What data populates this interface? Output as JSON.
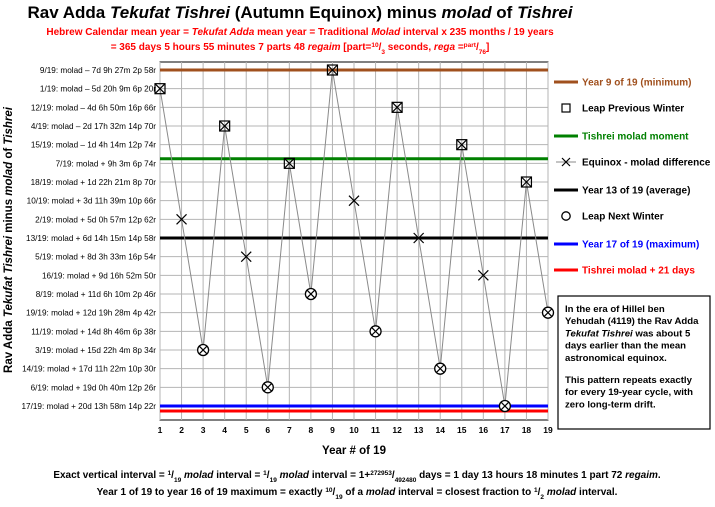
{
  "title": {
    "parts": [
      {
        "t": "Rav Adda ",
        "i": false
      },
      {
        "t": "Tekufat Tishrei",
        "i": true
      },
      {
        "t": " (Autumn Equinox) minus ",
        "i": false
      },
      {
        "t": "molad",
        "i": true
      },
      {
        "t": " of ",
        "i": false
      },
      {
        "t": "Tishrei",
        "i": true
      }
    ]
  },
  "subtitle": {
    "line1": [
      {
        "t": "Hebrew Calendar mean year = ",
        "i": false
      },
      {
        "t": "Tekufat Adda",
        "i": true
      },
      {
        "t": " mean year = Traditional ",
        "i": false
      },
      {
        "t": "Molad",
        "i": true
      },
      {
        "t": " interval x 235 months / 19 years",
        "i": false
      }
    ],
    "line2": [
      {
        "t": "= 365 days 5 hours 55 minutes 7 parts 48 ",
        "i": false
      },
      {
        "t": "regaim",
        "i": true
      },
      {
        "t": " [part=",
        "i": false
      },
      {
        "t": "10",
        "i": false,
        "sup": true
      },
      {
        "t": "/",
        "i": false
      },
      {
        "t": "3",
        "i": false,
        "sub": true
      },
      {
        "t": " seconds, ",
        "i": false
      },
      {
        "t": "rega",
        "i": true
      },
      {
        "t": " =",
        "i": false
      },
      {
        "t": "part",
        "i": false,
        "sup": true
      },
      {
        "t": "/",
        "i": false
      },
      {
        "t": "76",
        "i": false,
        "sub": true
      },
      {
        "t": "]",
        "i": false
      }
    ]
  },
  "chart_data": {
    "type": "scatter",
    "xlabel": "Year # of 19",
    "ylabel": [
      {
        "t": "Rav Adda ",
        "i": false
      },
      {
        "t": "Tekufat Tishrei",
        "i": true
      },
      {
        "t": " minus ",
        "i": false
      },
      {
        "t": "molad",
        "i": true
      },
      {
        "t": " of ",
        "i": false
      },
      {
        "t": "Tishrei",
        "i": true
      }
    ],
    "x": [
      1,
      2,
      3,
      4,
      5,
      6,
      7,
      8,
      9,
      10,
      11,
      12,
      13,
      14,
      15,
      16,
      17,
      18,
      19
    ],
    "y_ticks": [
      "9/19: molad – 7d 9h 27m 2p 58r",
      "1/19: molad – 5d 20h 9m 6p 20r",
      "12/19: molad – 4d 6h 50m 16p 66r",
      "4/19: molad – 2d 17h 32m 14p 70r",
      "15/19: molad – 1d 4h 14m 12p 74r",
      "7/19: molad + 9h 3m 6p 74r",
      "18/19: molad + 1d 22h 21m 8p 70r",
      "10/19: molad + 3d 11h 39m 10p 66r",
      "2/19: molad + 5d 0h 57m 12p 62r",
      "13/19: molad + 6d 14h 15m 14p 58r",
      "5/19: molad + 8d 3h 33m 16p 54r",
      "16/19: molad + 9d 16h 52m 50r",
      "8/19: molad + 11d 6h 10m 2p 46r",
      "19/19: molad + 12d 19h 28m 4p 42r",
      "11/19: molad + 14d 8h 46m 6p 38r",
      "3/19: molad + 15d 22h 4m 8p 34r",
      "14/19: molad + 17d 11h 22m 10p 30r",
      "6/19: molad + 19d 0h 40m 12p 26r",
      "17/19: molad + 20d 13h 58m 14p 22r"
    ],
    "y_days": [
      -5.838,
      5.04,
      15.919,
      -2.731,
      8.148,
      19.028,
      0.377,
      11.257,
      -7.394,
      3.484,
      14.365,
      -4.285,
      6.594,
      17.474,
      -1.177,
      9.703,
      20.582,
      1.931,
      12.812
    ],
    "markers": [
      "box",
      "x",
      "circle",
      "box",
      "x",
      "circle",
      "box",
      "circle",
      "box",
      "x",
      "circle",
      "box",
      "x",
      "circle",
      "box",
      "x",
      "circle",
      "box",
      "circle"
    ],
    "y_range_days": [
      -7.394,
      20.582
    ],
    "lines": [
      {
        "name": "Year 9 of 19 (minimum)",
        "y_days": -7.394,
        "color": "#a0501e"
      },
      {
        "name": "Tishrei molad moment",
        "y_days": 0,
        "color": "#008000"
      },
      {
        "name": "Year 13 of 19 (average)",
        "y_days": 6.594,
        "color": "#000000"
      },
      {
        "name": "Year 17 of 19 (maximum)",
        "y_days": 20.582,
        "color": "#0000ff"
      },
      {
        "name": "Tishrei molad + 21 days",
        "y_days": 21,
        "color": "#ff0000"
      }
    ],
    "series_markers": [
      {
        "name": "Leap Previous Winter",
        "marker": "box"
      },
      {
        "name": "Equinox - molad difference",
        "marker": "x"
      },
      {
        "name": "Leap Next Winter",
        "marker": "circle"
      }
    ],
    "grid": true
  },
  "legend_order": [
    "line0",
    "m0",
    "line1",
    "m1",
    "line2",
    "m2",
    "line3",
    "line4"
  ],
  "note": {
    "p1": [
      [
        {
          "t": "In the era of Hillel ben",
          "i": false
        }
      ],
      [
        {
          "t": "Yehudah (4119) the Rav Adda",
          "i": false
        }
      ],
      [
        {
          "t": "Tekufat Tishrei",
          "i": true
        },
        {
          "t": " was about 5",
          "i": false
        }
      ],
      [
        {
          "t": "days earlier than the mean",
          "i": false
        }
      ],
      [
        {
          "t": "astronomical equinox.",
          "i": false
        }
      ]
    ],
    "p2": [
      [
        {
          "t": "This pattern repeats exactly",
          "i": false
        }
      ],
      [
        {
          "t": "for every 19-year cycle, with",
          "i": false
        }
      ],
      [
        {
          "t": "zero long-term drift.",
          "i": false
        }
      ]
    ]
  },
  "footer": {
    "line1": [
      {
        "t": "Exact vertical interval = ",
        "i": false
      },
      {
        "t": "1",
        "i": false,
        "sup": true
      },
      {
        "t": "/",
        "i": false
      },
      {
        "t": "19",
        "i": false,
        "sub": true
      },
      {
        "t": " molad",
        "i": true
      },
      {
        "t": " interval = ",
        "i": false
      },
      {
        "t": "1",
        "i": false,
        "sup": true
      },
      {
        "t": "/",
        "i": false
      },
      {
        "t": "19",
        "i": false,
        "sub": true
      },
      {
        "t": " molad",
        "i": true
      },
      {
        "t": " interval = 1+",
        "i": false
      },
      {
        "t": "272953",
        "i": false,
        "sup": true
      },
      {
        "t": "/",
        "i": false
      },
      {
        "t": "492480",
        "i": false,
        "sub": true
      },
      {
        "t": " days = 1 day 13 hours 18 minutes 1 part 72 ",
        "i": false
      },
      {
        "t": "regaim",
        "i": true
      },
      {
        "t": ".",
        "i": false
      }
    ],
    "line2": [
      {
        "t": "Year 1 of 19 to year 16 of 19 maximum = exactly ",
        "i": false
      },
      {
        "t": "10",
        "i": false,
        "sup": true
      },
      {
        "t": "/",
        "i": false
      },
      {
        "t": "19",
        "i": false,
        "sub": true
      },
      {
        "t": " of a ",
        "i": false
      },
      {
        "t": "molad",
        "i": true
      },
      {
        "t": " interval = closest fraction to ",
        "i": false
      },
      {
        "t": "1",
        "i": false,
        "sup": true
      },
      {
        "t": "/",
        "i": false
      },
      {
        "t": "2",
        "i": false,
        "sub": true
      },
      {
        "t": " molad",
        "i": true
      },
      {
        "t": " interval.",
        "i": false
      }
    ]
  }
}
